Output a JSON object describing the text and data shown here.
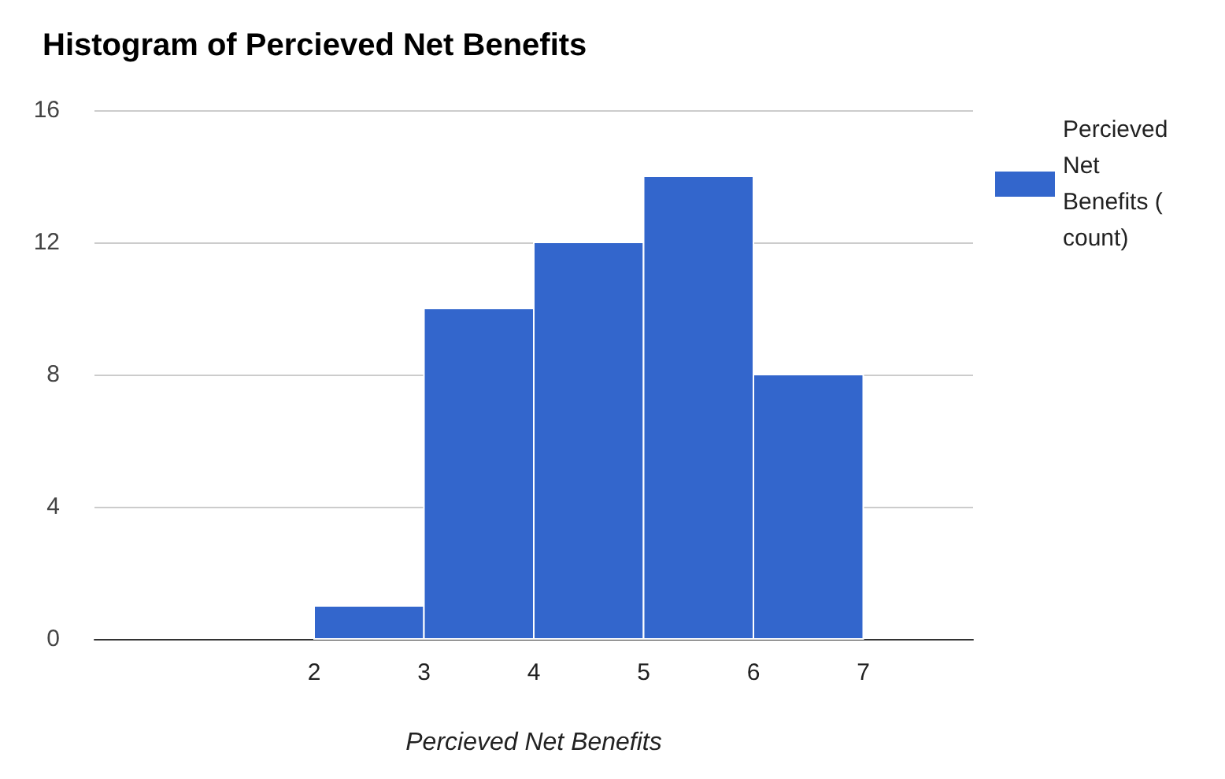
{
  "chart_data": {
    "type": "histogram",
    "title": "Histogram of Percieved Net Benefits",
    "xlabel": "Percieved Net Benefits",
    "bins": [
      2,
      3,
      4,
      5,
      6,
      7
    ],
    "series": [
      {
        "name": "Percieved Net Benefits ( count)",
        "color": "#3366cc",
        "values": [
          1,
          10,
          12,
          14,
          8
        ]
      }
    ],
    "xlim": [
      0,
      8
    ],
    "xticks": [
      2,
      3,
      4,
      5,
      6,
      7
    ],
    "ylim": [
      0,
      16
    ],
    "yticks": [
      0,
      4,
      8,
      12,
      16
    ],
    "grid": "y",
    "legend": "top right"
  }
}
